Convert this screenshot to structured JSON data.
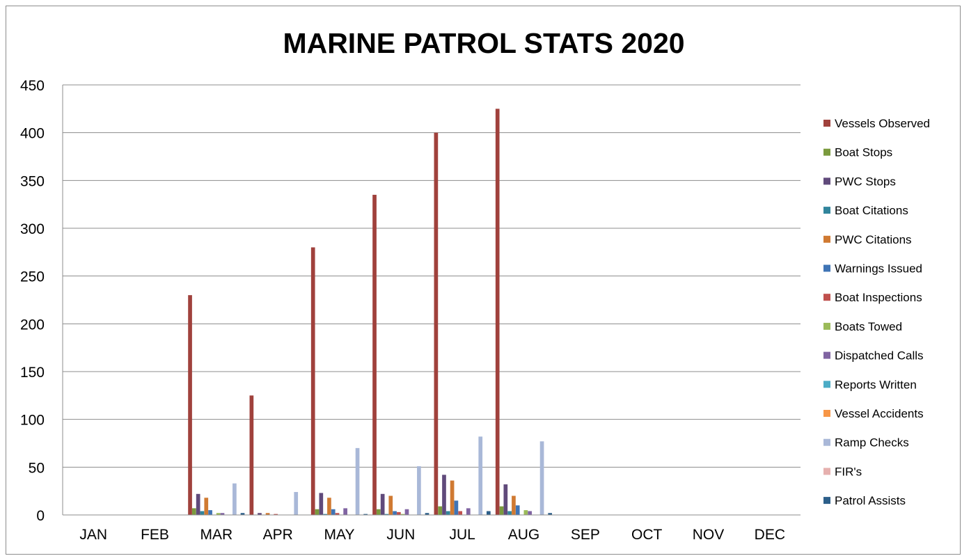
{
  "chart_data": {
    "type": "bar",
    "title": "MARINE PATROL STATS 2020",
    "xlabel": "",
    "ylabel": "",
    "ylim": [
      0,
      450
    ],
    "yticks": [
      0,
      50,
      100,
      150,
      200,
      250,
      300,
      350,
      400,
      450
    ],
    "grid": "horizontal",
    "legend_position": "right",
    "categories": [
      "JAN",
      "FEB",
      "MAR",
      "APR",
      "MAY",
      "JUN",
      "JUL",
      "AUG",
      "SEP",
      "OCT",
      "NOV",
      "DEC"
    ],
    "series": [
      {
        "name": "Vessels Observed",
        "color": "#a0413c",
        "values": [
          0,
          0,
          230,
          125,
          280,
          335,
          400,
          425,
          0,
          0,
          0,
          0
        ]
      },
      {
        "name": "Boat Stops",
        "color": "#7a9a3d",
        "values": [
          0,
          0,
          7,
          0,
          6,
          6,
          9,
          9,
          0,
          0,
          0,
          0
        ]
      },
      {
        "name": "PWC Stops",
        "color": "#604a7b",
        "values": [
          0,
          0,
          22,
          2,
          23,
          22,
          42,
          32,
          0,
          0,
          0,
          0
        ]
      },
      {
        "name": "Boat Citations",
        "color": "#31859c",
        "values": [
          0,
          0,
          4,
          0,
          1,
          1,
          4,
          4,
          0,
          0,
          0,
          0
        ]
      },
      {
        "name": "PWC Citations",
        "color": "#d07a32",
        "values": [
          0,
          0,
          18,
          2,
          18,
          20,
          36,
          20,
          0,
          0,
          0,
          0
        ]
      },
      {
        "name": "Warnings Issued",
        "color": "#3f74b5",
        "values": [
          0,
          0,
          5,
          0,
          6,
          4,
          15,
          10,
          0,
          0,
          0,
          0
        ]
      },
      {
        "name": "Boat Inspections",
        "color": "#c0504d",
        "values": [
          0,
          0,
          0,
          1,
          2,
          3,
          4,
          0,
          0,
          0,
          0,
          0
        ]
      },
      {
        "name": "Boats Towed",
        "color": "#9bbb59",
        "values": [
          0,
          0,
          2,
          0,
          0,
          1,
          0,
          5,
          0,
          0,
          0,
          0
        ]
      },
      {
        "name": "Dispatched Calls",
        "color": "#8064a2",
        "values": [
          0,
          0,
          2,
          0,
          7,
          6,
          7,
          4,
          0,
          0,
          0,
          0
        ]
      },
      {
        "name": "Reports Written",
        "color": "#4bacc6",
        "values": [
          0,
          0,
          0,
          0,
          0,
          0,
          0,
          0,
          0,
          0,
          0,
          0
        ]
      },
      {
        "name": "Vessel Accidents",
        "color": "#f79646",
        "values": [
          0,
          0,
          0,
          0,
          0,
          0,
          0,
          0,
          0,
          0,
          0,
          0
        ]
      },
      {
        "name": "Ramp Checks",
        "color": "#a9b8d8",
        "values": [
          0,
          0,
          33,
          24,
          70,
          51,
          82,
          77,
          0,
          0,
          0,
          0
        ]
      },
      {
        "name": "FIR's",
        "color": "#e6b0ae",
        "values": [
          0,
          0,
          0,
          0,
          0,
          0,
          0,
          0,
          0,
          0,
          0,
          0
        ]
      },
      {
        "name": "Patrol Assists",
        "color": "#2c5f8a",
        "values": [
          0,
          0,
          2,
          0,
          1,
          2,
          4,
          2,
          0,
          0,
          0,
          0
        ]
      }
    ]
  }
}
